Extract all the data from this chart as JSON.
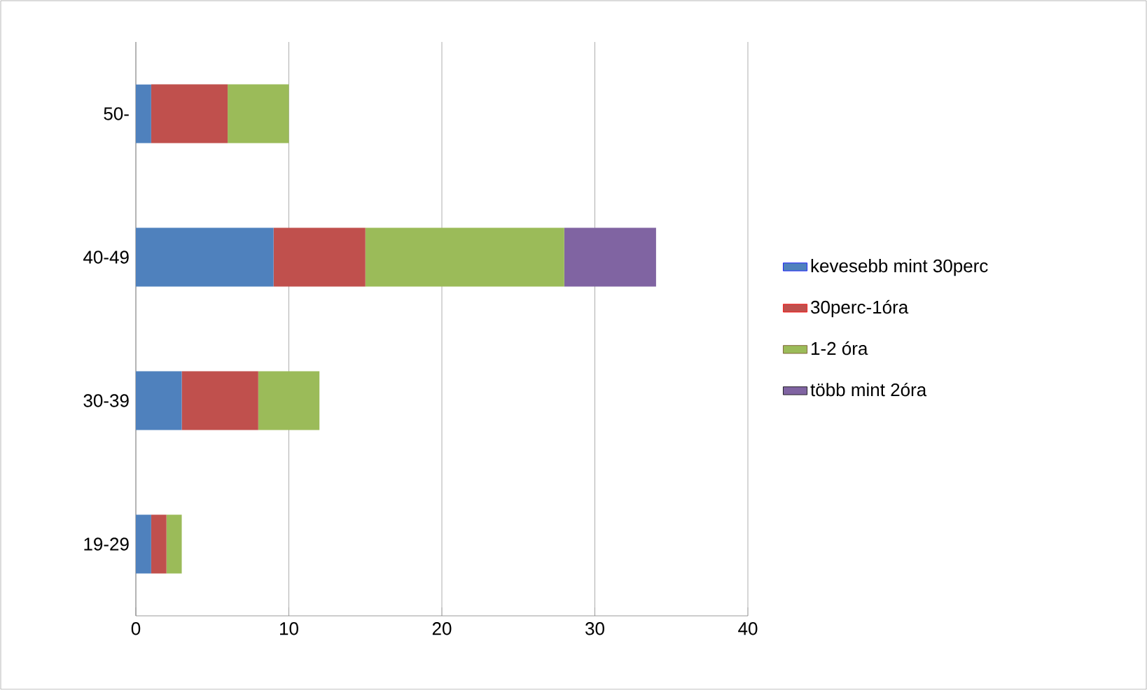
{
  "chart_data": {
    "type": "bar",
    "orientation": "horizontal",
    "stacked": true,
    "categories": [
      "50-",
      "40-49",
      "30-39",
      "19-29"
    ],
    "series": [
      {
        "name": "kevesebb mint 30perc",
        "color": "#4f81bd",
        "values": [
          1,
          9,
          3,
          1
        ]
      },
      {
        "name": "30perc-1óra",
        "color": "#c0504d",
        "values": [
          5,
          6,
          5,
          1
        ]
      },
      {
        "name": "1-2 óra",
        "color": "#9bbb59",
        "values": [
          4,
          13,
          4,
          1
        ]
      },
      {
        "name": "több mint 2óra",
        "color": "#8064a2",
        "values": [
          0,
          6,
          0,
          0
        ]
      }
    ],
    "xlim": [
      0,
      40
    ],
    "xticks": [
      0,
      10,
      20,
      30,
      40
    ],
    "grid": "x",
    "legend": "right"
  }
}
